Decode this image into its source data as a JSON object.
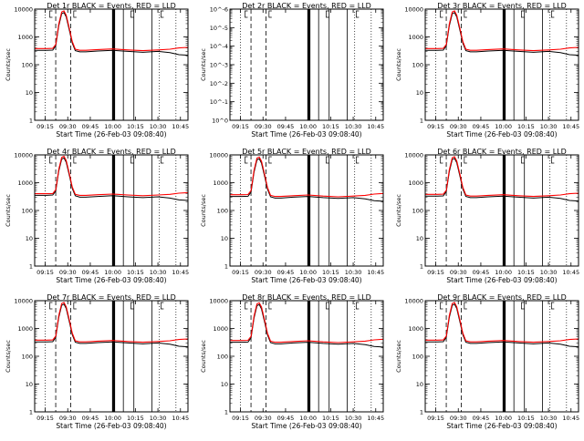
{
  "chart_data": {
    "type": "line",
    "x_tick_labels": [
      "09:15",
      "09:30",
      "09:45",
      "10:00",
      "10:15",
      "10:30",
      "10:45"
    ],
    "x_tick_minutes": [
      555,
      570,
      585,
      600,
      615,
      630,
      645
    ],
    "xlim_minutes": [
      548,
      650
    ],
    "y_scale": "log",
    "ylim": [
      1,
      10000
    ],
    "y_tick_labels": [
      "1",
      "10",
      "100",
      "1000",
      "10000"
    ],
    "ylabel": "Counts/sec",
    "xlabel": "Start Time (26-Feb-03 09:08:40)",
    "series_legend_text": "BLACK = Events, RED = LLD",
    "series_colors": {
      "events": "#000000",
      "lld": "#ff0000"
    },
    "event_markers": {
      "dotted": [
        555,
        631,
        642
      ],
      "dashed": [
        562,
        572
      ],
      "solid_thin": [
        607,
        614,
        626
      ],
      "solid_thick": [
        600,
        601
      ]
    },
    "panels": [
      {
        "title": "Det 1r BLACK = Events, RED = LLD",
        "detector": "1r",
        "data_present": true,
        "x_minutes": [
          548,
          556,
          560,
          562,
          564,
          566,
          567.5,
          569,
          571,
          573,
          575,
          578,
          582,
          590,
          600,
          610,
          620,
          630,
          638,
          644,
          650
        ],
        "events": [
          330,
          330,
          335,
          480,
          2500,
          6800,
          7500,
          5200,
          1800,
          600,
          320,
          290,
          290,
          310,
          330,
          300,
          280,
          300,
          270,
          230,
          220
        ],
        "lld": [
          380,
          380,
          385,
          530,
          2900,
          7900,
          8600,
          6000,
          2100,
          680,
          360,
          330,
          330,
          350,
          370,
          340,
          320,
          340,
          360,
          400,
          420
        ]
      },
      {
        "title": "Det 2r BLACK = Events, RED = LLD",
        "detector": "2r",
        "data_present": false,
        "y_tick_labels": [
          "10^0",
          "10^-1",
          "10^-2",
          "10^-3",
          "10^-4",
          "10^-5",
          "10^-6"
        ]
      },
      {
        "title": "Det 3r BLACK = Events, RED = LLD",
        "detector": "3r",
        "data_present": true,
        "x_minutes": [
          548,
          556,
          560,
          562,
          564,
          566,
          567.5,
          569,
          571,
          573,
          575,
          578,
          582,
          590,
          600,
          610,
          620,
          630,
          638,
          644,
          650
        ],
        "events": [
          330,
          330,
          335,
          480,
          2500,
          6800,
          7500,
          5200,
          1800,
          600,
          320,
          290,
          290,
          310,
          330,
          300,
          280,
          300,
          270,
          230,
          220
        ],
        "lld": [
          380,
          380,
          385,
          530,
          2900,
          7900,
          8600,
          6000,
          2100,
          680,
          360,
          330,
          330,
          350,
          370,
          340,
          320,
          340,
          360,
          400,
          420
        ]
      },
      {
        "title": "Det 4r BLACK = Events, RED = LLD",
        "detector": "4r",
        "data_present": true,
        "x_minutes": [
          548,
          556,
          560,
          562,
          564,
          566,
          567.5,
          569,
          571,
          573,
          575,
          578,
          582,
          590,
          600,
          610,
          620,
          630,
          638,
          644,
          650
        ],
        "events": [
          350,
          350,
          360,
          500,
          2600,
          7000,
          7800,
          5400,
          1900,
          620,
          340,
          300,
          300,
          320,
          340,
          310,
          290,
          310,
          280,
          240,
          230
        ],
        "lld": [
          400,
          400,
          405,
          560,
          3000,
          8100,
          8900,
          6200,
          2200,
          700,
          380,
          350,
          350,
          370,
          390,
          360,
          340,
          360,
          380,
          420,
          440
        ]
      },
      {
        "title": "Det 5r BLACK = Events, RED = LLD",
        "detector": "5r",
        "data_present": true,
        "x_minutes": [
          548,
          556,
          560,
          562,
          564,
          566,
          567.5,
          569,
          571,
          573,
          575,
          578,
          582,
          590,
          600,
          610,
          620,
          630,
          638,
          644,
          650
        ],
        "events": [
          320,
          320,
          325,
          460,
          2400,
          6600,
          7300,
          5000,
          1750,
          580,
          310,
          280,
          280,
          300,
          320,
          290,
          270,
          290,
          260,
          225,
          215
        ],
        "lld": [
          370,
          370,
          375,
          520,
          2800,
          7700,
          8400,
          5900,
          2050,
          660,
          350,
          320,
          320,
          340,
          360,
          330,
          310,
          330,
          350,
          390,
          410
        ]
      },
      {
        "title": "Det 6r BLACK = Events, RED = LLD",
        "detector": "6r",
        "data_present": true,
        "x_minutes": [
          548,
          556,
          560,
          562,
          564,
          566,
          567.5,
          569,
          571,
          573,
          575,
          578,
          582,
          590,
          600,
          610,
          620,
          630,
          638,
          644,
          650
        ],
        "events": [
          330,
          330,
          335,
          480,
          2500,
          6800,
          7500,
          5200,
          1800,
          600,
          320,
          290,
          290,
          310,
          330,
          300,
          280,
          300,
          270,
          230,
          220
        ],
        "lld": [
          380,
          380,
          385,
          530,
          2900,
          7900,
          8600,
          6000,
          2100,
          680,
          360,
          330,
          330,
          350,
          370,
          340,
          320,
          340,
          360,
          400,
          420
        ]
      },
      {
        "title": "Det 7r BLACK = Events, RED = LLD",
        "detector": "7r",
        "data_present": true,
        "x_minutes": [
          548,
          556,
          560,
          562,
          564,
          566,
          567.5,
          569,
          571,
          573,
          575,
          578,
          582,
          590,
          600,
          610,
          620,
          630,
          638,
          644,
          650
        ],
        "events": [
          330,
          330,
          335,
          480,
          2500,
          6800,
          7500,
          5200,
          1800,
          600,
          320,
          290,
          290,
          310,
          330,
          300,
          280,
          300,
          270,
          230,
          220
        ],
        "lld": [
          380,
          380,
          385,
          530,
          2900,
          7900,
          8600,
          6000,
          2100,
          680,
          360,
          330,
          330,
          350,
          370,
          340,
          320,
          340,
          360,
          400,
          420
        ]
      },
      {
        "title": "Det 8r BLACK = Events, RED = LLD",
        "detector": "8r",
        "data_present": true,
        "x_minutes": [
          548,
          556,
          560,
          562,
          564,
          566,
          567.5,
          569,
          571,
          573,
          575,
          578,
          582,
          590,
          600,
          610,
          620,
          630,
          638,
          644,
          650
        ],
        "events": [
          320,
          320,
          325,
          460,
          2400,
          6600,
          7300,
          5000,
          1750,
          580,
          310,
          280,
          280,
          300,
          320,
          290,
          270,
          290,
          260,
          225,
          215
        ],
        "lld": [
          370,
          370,
          375,
          520,
          2800,
          7700,
          8400,
          5900,
          2050,
          660,
          350,
          320,
          320,
          340,
          360,
          330,
          310,
          330,
          350,
          390,
          410
        ]
      },
      {
        "title": "Det 9r BLACK = Events, RED = LLD",
        "detector": "9r",
        "data_present": true,
        "x_minutes": [
          548,
          556,
          560,
          562,
          564,
          566,
          567.5,
          569,
          571,
          573,
          575,
          578,
          582,
          590,
          600,
          610,
          620,
          630,
          638,
          644,
          650
        ],
        "events": [
          330,
          330,
          335,
          480,
          2500,
          6800,
          7500,
          5200,
          1800,
          600,
          320,
          290,
          290,
          310,
          330,
          300,
          280,
          300,
          270,
          230,
          220
        ],
        "lld": [
          380,
          380,
          385,
          530,
          2900,
          7900,
          8600,
          6000,
          2100,
          680,
          360,
          330,
          330,
          350,
          370,
          340,
          320,
          340,
          360,
          400,
          420
        ]
      }
    ]
  }
}
